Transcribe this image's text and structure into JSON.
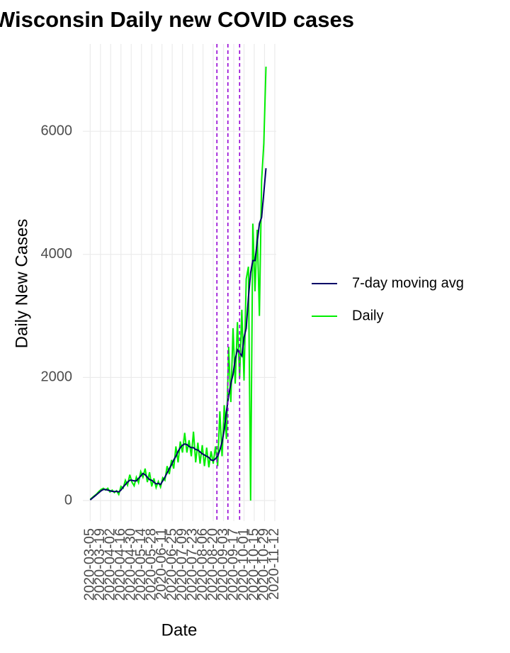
{
  "chart_data": {
    "type": "line",
    "title": "Wisconsin Daily new COVID cases",
    "x_label": "Date",
    "y_label": "Daily New Cases",
    "x": [
      "2020-03-05",
      "2020-03-08",
      "2020-03-11",
      "2020-03-14",
      "2020-03-17",
      "2020-03-20",
      "2020-03-23",
      "2020-03-26",
      "2020-03-29",
      "2020-04-01",
      "2020-04-04",
      "2020-04-07",
      "2020-04-10",
      "2020-04-13",
      "2020-04-16",
      "2020-04-19",
      "2020-04-22",
      "2020-04-25",
      "2020-04-28",
      "2020-05-01",
      "2020-05-04",
      "2020-05-07",
      "2020-05-10",
      "2020-05-13",
      "2020-05-16",
      "2020-05-19",
      "2020-05-22",
      "2020-05-25",
      "2020-05-28",
      "2020-05-31",
      "2020-06-03",
      "2020-06-06",
      "2020-06-09",
      "2020-06-12",
      "2020-06-15",
      "2020-06-18",
      "2020-06-21",
      "2020-06-24",
      "2020-06-27",
      "2020-06-30",
      "2020-07-03",
      "2020-07-06",
      "2020-07-09",
      "2020-07-12",
      "2020-07-15",
      "2020-07-18",
      "2020-07-21",
      "2020-07-24",
      "2020-07-27",
      "2020-07-30",
      "2020-08-02",
      "2020-08-05",
      "2020-08-08",
      "2020-08-11",
      "2020-08-14",
      "2020-08-17",
      "2020-08-20",
      "2020-08-23",
      "2020-08-26",
      "2020-08-29",
      "2020-09-01",
      "2020-09-04",
      "2020-09-07",
      "2020-09-10",
      "2020-09-13",
      "2020-09-16",
      "2020-09-19",
      "2020-09-22",
      "2020-09-25",
      "2020-09-28",
      "2020-10-01",
      "2020-10-04",
      "2020-10-07",
      "2020-10-10",
      "2020-10-13",
      "2020-10-16",
      "2020-10-19",
      "2020-10-22",
      "2020-10-25",
      "2020-10-28",
      "2020-10-31"
    ],
    "series": [
      {
        "name": "Daily",
        "color": "#00ee00",
        "values": [
          20,
          50,
          80,
          110,
          150,
          180,
          200,
          170,
          200,
          140,
          170,
          130,
          160,
          100,
          230,
          200,
          330,
          250,
          420,
          300,
          240,
          380,
          290,
          470,
          380,
          520,
          300,
          460,
          230,
          360,
          210,
          310,
          220,
          370,
          330,
          560,
          430,
          660,
          520,
          880,
          620,
          960,
          780,
          1100,
          780,
          980,
          720,
          1120,
          620,
          940,
          600,
          900,
          560,
          860,
          540,
          800,
          600,
          880,
          560,
          1450,
          720,
          1550,
          1000,
          2500,
          1600,
          2800,
          1900,
          2900,
          2000,
          3100,
          1950,
          3600,
          3800,
          0,
          4500,
          3400,
          4400,
          3000,
          5200,
          5800,
          7050
        ]
      },
      {
        "name": "7-day moving avg",
        "color": "#000066",
        "values": [
          10,
          40,
          70,
          100,
          130,
          160,
          180,
          180,
          170,
          160,
          150,
          145,
          150,
          140,
          170,
          220,
          260,
          300,
          330,
          330,
          320,
          320,
          360,
          400,
          440,
          420,
          380,
          340,
          330,
          300,
          270,
          280,
          260,
          320,
          380,
          450,
          520,
          580,
          660,
          720,
          800,
          860,
          900,
          920,
          910,
          880,
          860,
          860,
          830,
          820,
          790,
          760,
          740,
          720,
          700,
          660,
          650,
          680,
          720,
          820,
          950,
          1150,
          1450,
          1700,
          1900,
          2050,
          2300,
          2450,
          2400,
          2350,
          2650,
          2800,
          3300,
          3700,
          3900,
          3900,
          4200,
          4500,
          4600,
          5000,
          5400
        ]
      }
    ],
    "legend_order": [
      1,
      0
    ],
    "vlines": [
      "2020-08-25",
      "2020-09-09",
      "2020-09-25"
    ],
    "vline_color": "#9400d3",
    "xlim": [
      "2020-02-24",
      "2020-11-14"
    ],
    "xticks": [
      "2020-03-05",
      "2020-03-19",
      "2020-04-02",
      "2020-04-16",
      "2020-04-30",
      "2020-05-14",
      "2020-05-28",
      "2020-06-11",
      "2020-06-25",
      "2020-07-09",
      "2020-07-23",
      "2020-08-06",
      "2020-08-20",
      "2020-09-03",
      "2020-09-17",
      "2020-10-01",
      "2020-10-15",
      "2020-10-29",
      "2020-11-12"
    ],
    "ylim": [
      -334,
      7419
    ],
    "yticks": [
      0,
      2000,
      4000,
      6000
    ],
    "grid": true
  }
}
